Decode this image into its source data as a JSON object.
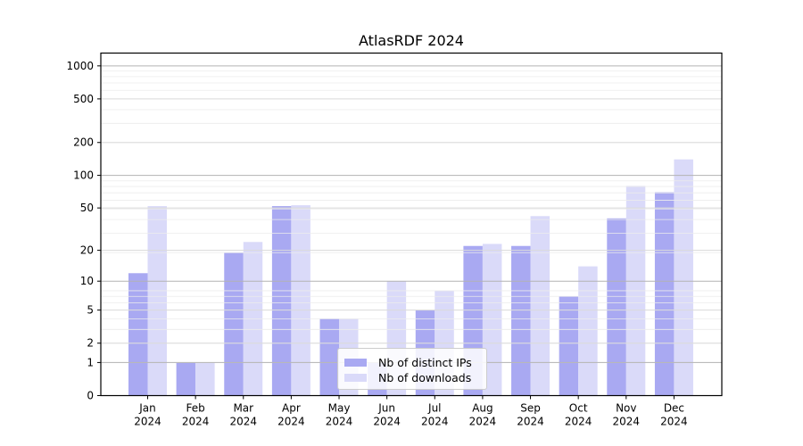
{
  "chart_data": {
    "type": "bar",
    "title": "AtlasRDF 2024",
    "categories": [
      "Jan",
      "Feb",
      "Mar",
      "Apr",
      "May",
      "Jun",
      "Jul",
      "Aug",
      "Sep",
      "Oct",
      "Nov",
      "Dec"
    ],
    "category_year": "2024",
    "series": [
      {
        "name": "Nb of distinct IPs",
        "color": "#a9a9f2",
        "values": [
          12,
          1,
          19,
          52,
          4,
          1,
          5,
          22,
          22,
          7,
          40,
          70
        ]
      },
      {
        "name": "Nb of downloads",
        "color": "#dadaf9",
        "values": [
          52,
          1,
          24,
          53,
          4,
          10,
          8,
          23,
          42,
          14,
          80,
          140
        ]
      }
    ],
    "y_scale": "log1p",
    "y_ticks": [
      0,
      1,
      2,
      5,
      10,
      20,
      50,
      100,
      200,
      500,
      1000
    ],
    "y_major_ticks": [
      1,
      10,
      100,
      1000
    ],
    "ylim": [
      0,
      1300
    ],
    "grid": true,
    "legend_position": "inside-bottom-center",
    "colors": {
      "major_grid": "#b3b3b3",
      "labeled_grid": "#dadada",
      "minor_grid": "#ececec",
      "axis": "#000000"
    }
  }
}
